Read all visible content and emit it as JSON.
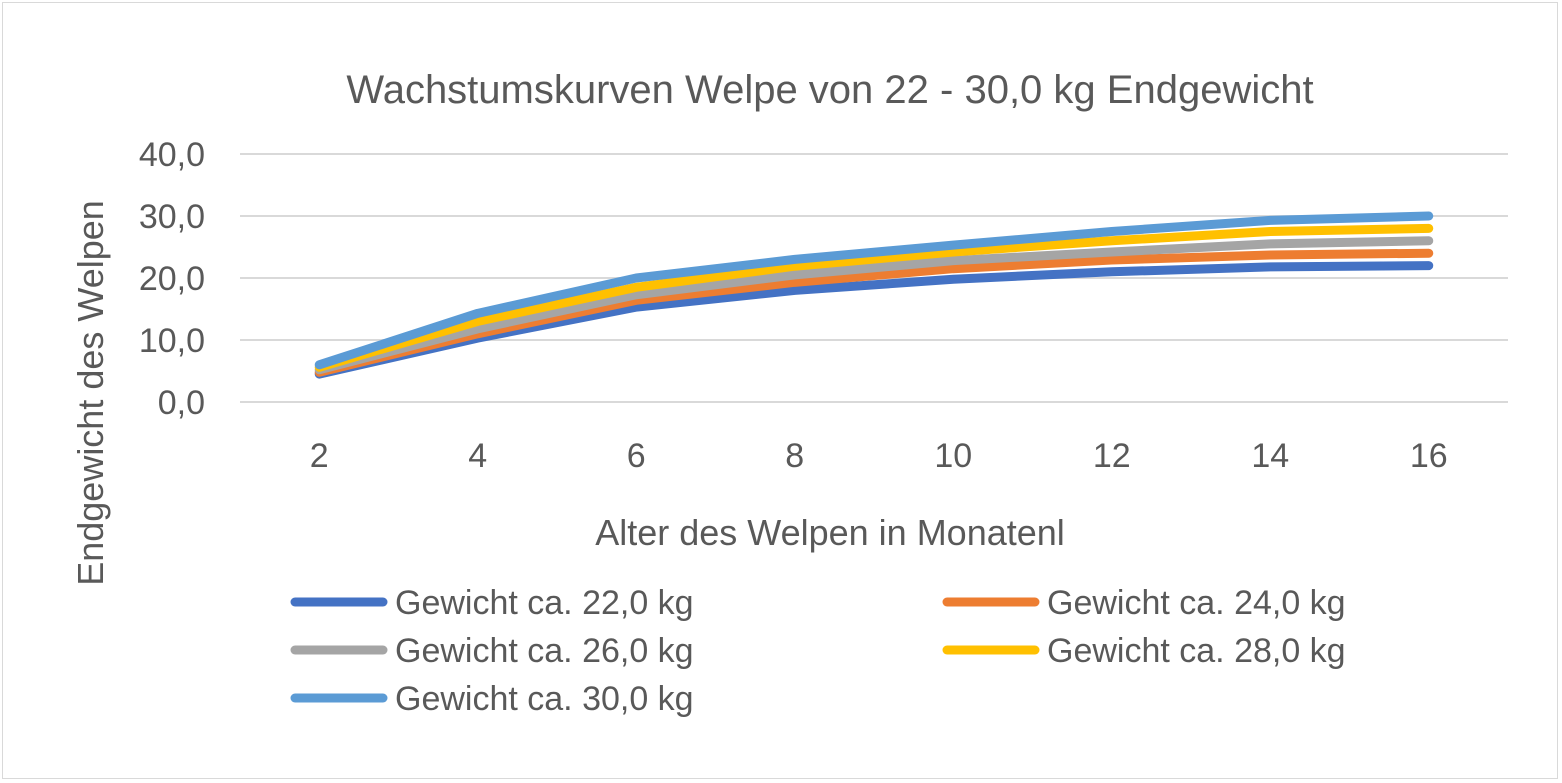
{
  "chart_data": {
    "type": "line",
    "title": "Wachstumskurven Welpe von 22 - 30,0 kg Endgewicht",
    "xlabel": "Alter des Welpen in Monatenl",
    "ylabel": "Endgewicht des Welpen",
    "categories": [
      "2",
      "4",
      "6",
      "8",
      "10",
      "12",
      "14",
      "16"
    ],
    "ylim": [
      0,
      40
    ],
    "yticks": [
      "0,0",
      "10,0",
      "20,0",
      "30,0",
      "40,0"
    ],
    "ytick_values": [
      0,
      10,
      20,
      30,
      40
    ],
    "grid": true,
    "legend_position": "bottom",
    "series": [
      {
        "name": "Gewicht ca. 22,0 kg",
        "color": "#4472C4",
        "values": [
          4.5,
          10.3,
          15.3,
          18.0,
          19.8,
          21.0,
          21.8,
          22.0
        ]
      },
      {
        "name": "Gewicht ca. 24,0 kg",
        "color": "#ED7D31",
        "values": [
          4.8,
          11.0,
          16.4,
          19.3,
          21.5,
          22.9,
          23.7,
          24.0
        ]
      },
      {
        "name": "Gewicht ca. 26,0 kg",
        "color": "#A5A5A5",
        "values": [
          5.2,
          11.8,
          17.3,
          20.5,
          22.8,
          24.2,
          25.5,
          26.0
        ]
      },
      {
        "name": "Gewicht ca. 28,0 kg",
        "color": "#FFC000",
        "values": [
          5.6,
          13.0,
          18.5,
          21.9,
          24.2,
          26.0,
          27.5,
          28.0
        ]
      },
      {
        "name": "Gewicht ca. 30,0 kg",
        "color": "#5B9BD5",
        "values": [
          6.0,
          14.3,
          20.0,
          23.0,
          25.3,
          27.5,
          29.3,
          30.0
        ]
      }
    ]
  }
}
